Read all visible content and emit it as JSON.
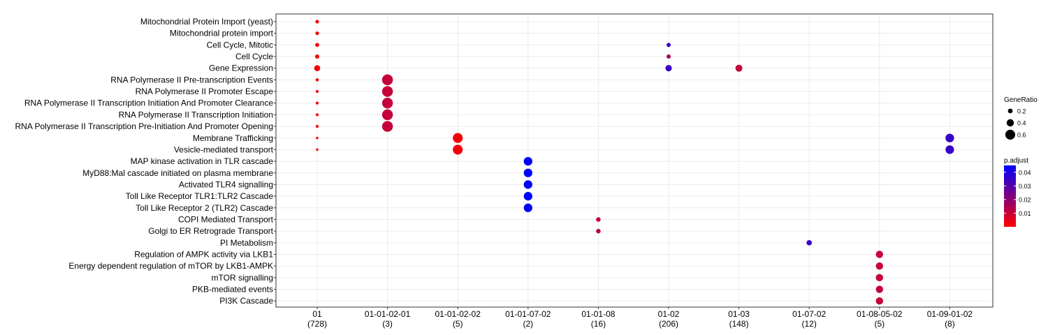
{
  "chart_data": {
    "type": "scatter",
    "categories_x": [
      {
        "code": "01",
        "count": "(728)"
      },
      {
        "code": "01-01-02-01",
        "count": "(3)"
      },
      {
        "code": "01-01-02-02",
        "count": "(5)"
      },
      {
        "code": "01-01-07-02",
        "count": "(2)"
      },
      {
        "code": "01-01-08",
        "count": "(16)"
      },
      {
        "code": "01-02",
        "count": "(206)"
      },
      {
        "code": "01-03",
        "count": "(148)"
      },
      {
        "code": "01-07-02",
        "count": "(12)"
      },
      {
        "code": "01-08-05-02",
        "count": "(5)"
      },
      {
        "code": "01-09-01-02",
        "count": "(8)"
      }
    ],
    "categories_y": [
      "Mitochondrial Protein Import (yeast)",
      "Mitochondrial protein import",
      "Cell Cycle, Mitotic",
      "Cell Cycle",
      "Gene Expression",
      "RNA Polymerase II Pre-transcription Events",
      "RNA Polymerase II Promoter Escape",
      "RNA Polymerase II Transcription Initiation And Promoter Clearance",
      "RNA Polymerase II Transcription Initiation",
      "RNA Polymerase II Transcription Pre-Initiation And Promoter Opening",
      "Membrane Trafficking",
      "Vesicle-mediated transport",
      "MAP kinase activation in TLR cascade",
      "MyD88:Mal cascade initiated on plasma membrane",
      "Activated TLR4 signalling",
      "Toll Like Receptor TLR1:TLR2 Cascade",
      "Toll Like Receptor 2 (TLR2) Cascade",
      "COPI Mediated Transport",
      "Golgi to ER Retrograde Transport",
      "PI Metabolism",
      "Regulation of AMPK activity via LKB1",
      "Energy dependent regulation of mTOR by LKB1-AMPK",
      "mTOR signalling",
      "PKB-mediated events",
      "PI3K Cascade"
    ],
    "points": [
      {
        "x": "01",
        "y": "Mitochondrial Protein Import (yeast)",
        "gene_ratio": 0.12,
        "p_adjust": 0.001
      },
      {
        "x": "01",
        "y": "Mitochondrial protein import",
        "gene_ratio": 0.12,
        "p_adjust": 0.001
      },
      {
        "x": "01",
        "y": "Cell Cycle, Mitotic",
        "gene_ratio": 0.15,
        "p_adjust": 0.001
      },
      {
        "x": "01",
        "y": "Cell Cycle",
        "gene_ratio": 0.16,
        "p_adjust": 0.001
      },
      {
        "x": "01",
        "y": "Gene Expression",
        "gene_ratio": 0.3,
        "p_adjust": 0.002
      },
      {
        "x": "01",
        "y": "RNA Polymerase II Pre-transcription Events",
        "gene_ratio": 0.08,
        "p_adjust": 0.001
      },
      {
        "x": "01",
        "y": "RNA Polymerase II Promoter Escape",
        "gene_ratio": 0.06,
        "p_adjust": 0.001
      },
      {
        "x": "01",
        "y": "RNA Polymerase II Transcription Initiation And Promoter Clearance",
        "gene_ratio": 0.06,
        "p_adjust": 0.001
      },
      {
        "x": "01",
        "y": "RNA Polymerase II Transcription Initiation",
        "gene_ratio": 0.06,
        "p_adjust": 0.001
      },
      {
        "x": "01",
        "y": "RNA Polymerase II Transcription Pre-Initiation And Promoter Opening",
        "gene_ratio": 0.06,
        "p_adjust": 0.001
      },
      {
        "x": "01",
        "y": "Membrane Trafficking",
        "gene_ratio": 0.03,
        "p_adjust": 0.001
      },
      {
        "x": "01",
        "y": "Vesicle-mediated transport",
        "gene_ratio": 0.03,
        "p_adjust": 0.001
      },
      {
        "x": "01-01-02-01",
        "y": "RNA Polymerase II Pre-transcription Events",
        "gene_ratio": 0.67,
        "p_adjust": 0.01
      },
      {
        "x": "01-01-02-01",
        "y": "RNA Polymerase II Promoter Escape",
        "gene_ratio": 0.67,
        "p_adjust": 0.01
      },
      {
        "x": "01-01-02-01",
        "y": "RNA Polymerase II Transcription Initiation And Promoter Clearance",
        "gene_ratio": 0.67,
        "p_adjust": 0.01
      },
      {
        "x": "01-01-02-01",
        "y": "RNA Polymerase II Transcription Initiation",
        "gene_ratio": 0.67,
        "p_adjust": 0.01
      },
      {
        "x": "01-01-02-01",
        "y": "RNA Polymerase II Transcription Pre-Initiation And Promoter Opening",
        "gene_ratio": 0.67,
        "p_adjust": 0.01
      },
      {
        "x": "01-01-02-02",
        "y": "Membrane Trafficking",
        "gene_ratio": 0.6,
        "p_adjust": 0.002
      },
      {
        "x": "01-01-02-02",
        "y": "Vesicle-mediated transport",
        "gene_ratio": 0.6,
        "p_adjust": 0.002
      },
      {
        "x": "01-01-07-02",
        "y": "MAP kinase activation in TLR cascade",
        "gene_ratio": 0.5,
        "p_adjust": 0.045
      },
      {
        "x": "01-01-07-02",
        "y": "MyD88:Mal cascade initiated on plasma membrane",
        "gene_ratio": 0.5,
        "p_adjust": 0.045
      },
      {
        "x": "01-01-07-02",
        "y": "Activated TLR4 signalling",
        "gene_ratio": 0.5,
        "p_adjust": 0.045
      },
      {
        "x": "01-01-07-02",
        "y": "Toll Like Receptor TLR1:TLR2 Cascade",
        "gene_ratio": 0.5,
        "p_adjust": 0.045
      },
      {
        "x": "01-01-07-02",
        "y": "Toll Like Receptor 2 (TLR2) Cascade",
        "gene_ratio": 0.5,
        "p_adjust": 0.045
      },
      {
        "x": "01-01-08",
        "y": "COPI Mediated Transport",
        "gene_ratio": 0.19,
        "p_adjust": 0.012
      },
      {
        "x": "01-01-08",
        "y": "Golgi to ER Retrograde Transport",
        "gene_ratio": 0.19,
        "p_adjust": 0.012
      },
      {
        "x": "01-02",
        "y": "Cell Cycle, Mitotic",
        "gene_ratio": 0.16,
        "p_adjust": 0.035
      },
      {
        "x": "01-02",
        "y": "Cell Cycle",
        "gene_ratio": 0.16,
        "p_adjust": 0.015
      },
      {
        "x": "01-02",
        "y": "Gene Expression",
        "gene_ratio": 0.33,
        "p_adjust": 0.035
      },
      {
        "x": "01-03",
        "y": "Gene Expression",
        "gene_ratio": 0.37,
        "p_adjust": 0.01
      },
      {
        "x": "01-07-02",
        "y": "PI Metabolism",
        "gene_ratio": 0.25,
        "p_adjust": 0.035
      },
      {
        "x": "01-08-05-02",
        "y": "Regulation of AMPK activity via LKB1",
        "gene_ratio": 0.4,
        "p_adjust": 0.01
      },
      {
        "x": "01-08-05-02",
        "y": "Energy dependent regulation of mTOR by LKB1-AMPK",
        "gene_ratio": 0.4,
        "p_adjust": 0.01
      },
      {
        "x": "01-08-05-02",
        "y": "mTOR signalling",
        "gene_ratio": 0.4,
        "p_adjust": 0.01
      },
      {
        "x": "01-08-05-02",
        "y": "PKB-mediated events",
        "gene_ratio": 0.4,
        "p_adjust": 0.01
      },
      {
        "x": "01-08-05-02",
        "y": "PI3K Cascade",
        "gene_ratio": 0.4,
        "p_adjust": 0.01
      },
      {
        "x": "01-09-01-02",
        "y": "Membrane Trafficking",
        "gene_ratio": 0.5,
        "p_adjust": 0.035
      },
      {
        "x": "01-09-01-02",
        "y": "Vesicle-mediated transport",
        "gene_ratio": 0.5,
        "p_adjust": 0.035
      }
    ],
    "legend_size": {
      "title": "GeneRatio",
      "entries": [
        {
          "label": "0.2",
          "value": 0.2
        },
        {
          "label": "0.4",
          "value": 0.4
        },
        {
          "label": "0.6",
          "value": 0.6
        }
      ]
    },
    "legend_color": {
      "title": "p.adjust",
      "range": [
        0.0,
        0.045
      ],
      "ticks": [
        {
          "label": "0.04",
          "value": 0.04
        },
        {
          "label": "0.03",
          "value": 0.03
        },
        {
          "label": "0.02",
          "value": 0.02
        },
        {
          "label": "0.01",
          "value": 0.01
        }
      ],
      "color_low": "#ff0000",
      "color_high": "#0000ff"
    },
    "gene_ratio_range": [
      0.0,
      0.7
    ],
    "grid": true,
    "legend_position": "right"
  }
}
